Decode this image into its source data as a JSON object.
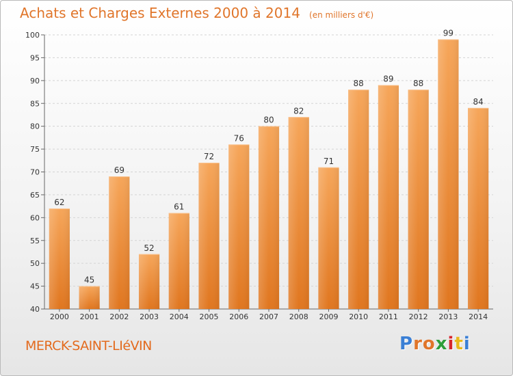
{
  "header": {
    "title": "Achats et Charges Externes 2000 à 2014",
    "subtitle": "(en milliers d'€)"
  },
  "footer": {
    "commune": "MERCK-SAINT-LIéVIN",
    "logo": "Proxiti",
    "logo_colors": [
      "#3a7fd5",
      "#e0752a",
      "#e0752a",
      "#2e9e3a",
      "#d6262c",
      "#e8b81c",
      "#3a7fd5"
    ]
  },
  "chart_data": {
    "type": "bar",
    "categories": [
      "2000",
      "2001",
      "2002",
      "2003",
      "2004",
      "2005",
      "2006",
      "2007",
      "2008",
      "2009",
      "2010",
      "2011",
      "2012",
      "2013",
      "2014"
    ],
    "values": [
      62,
      45,
      69,
      52,
      61,
      72,
      76,
      80,
      82,
      71,
      88,
      89,
      88,
      99,
      84
    ],
    "ylim": [
      40,
      100
    ],
    "yticks": [
      40,
      45,
      50,
      55,
      60,
      65,
      70,
      75,
      80,
      85,
      90,
      95,
      100
    ],
    "bar_color": "#f0923f",
    "grid": true
  }
}
